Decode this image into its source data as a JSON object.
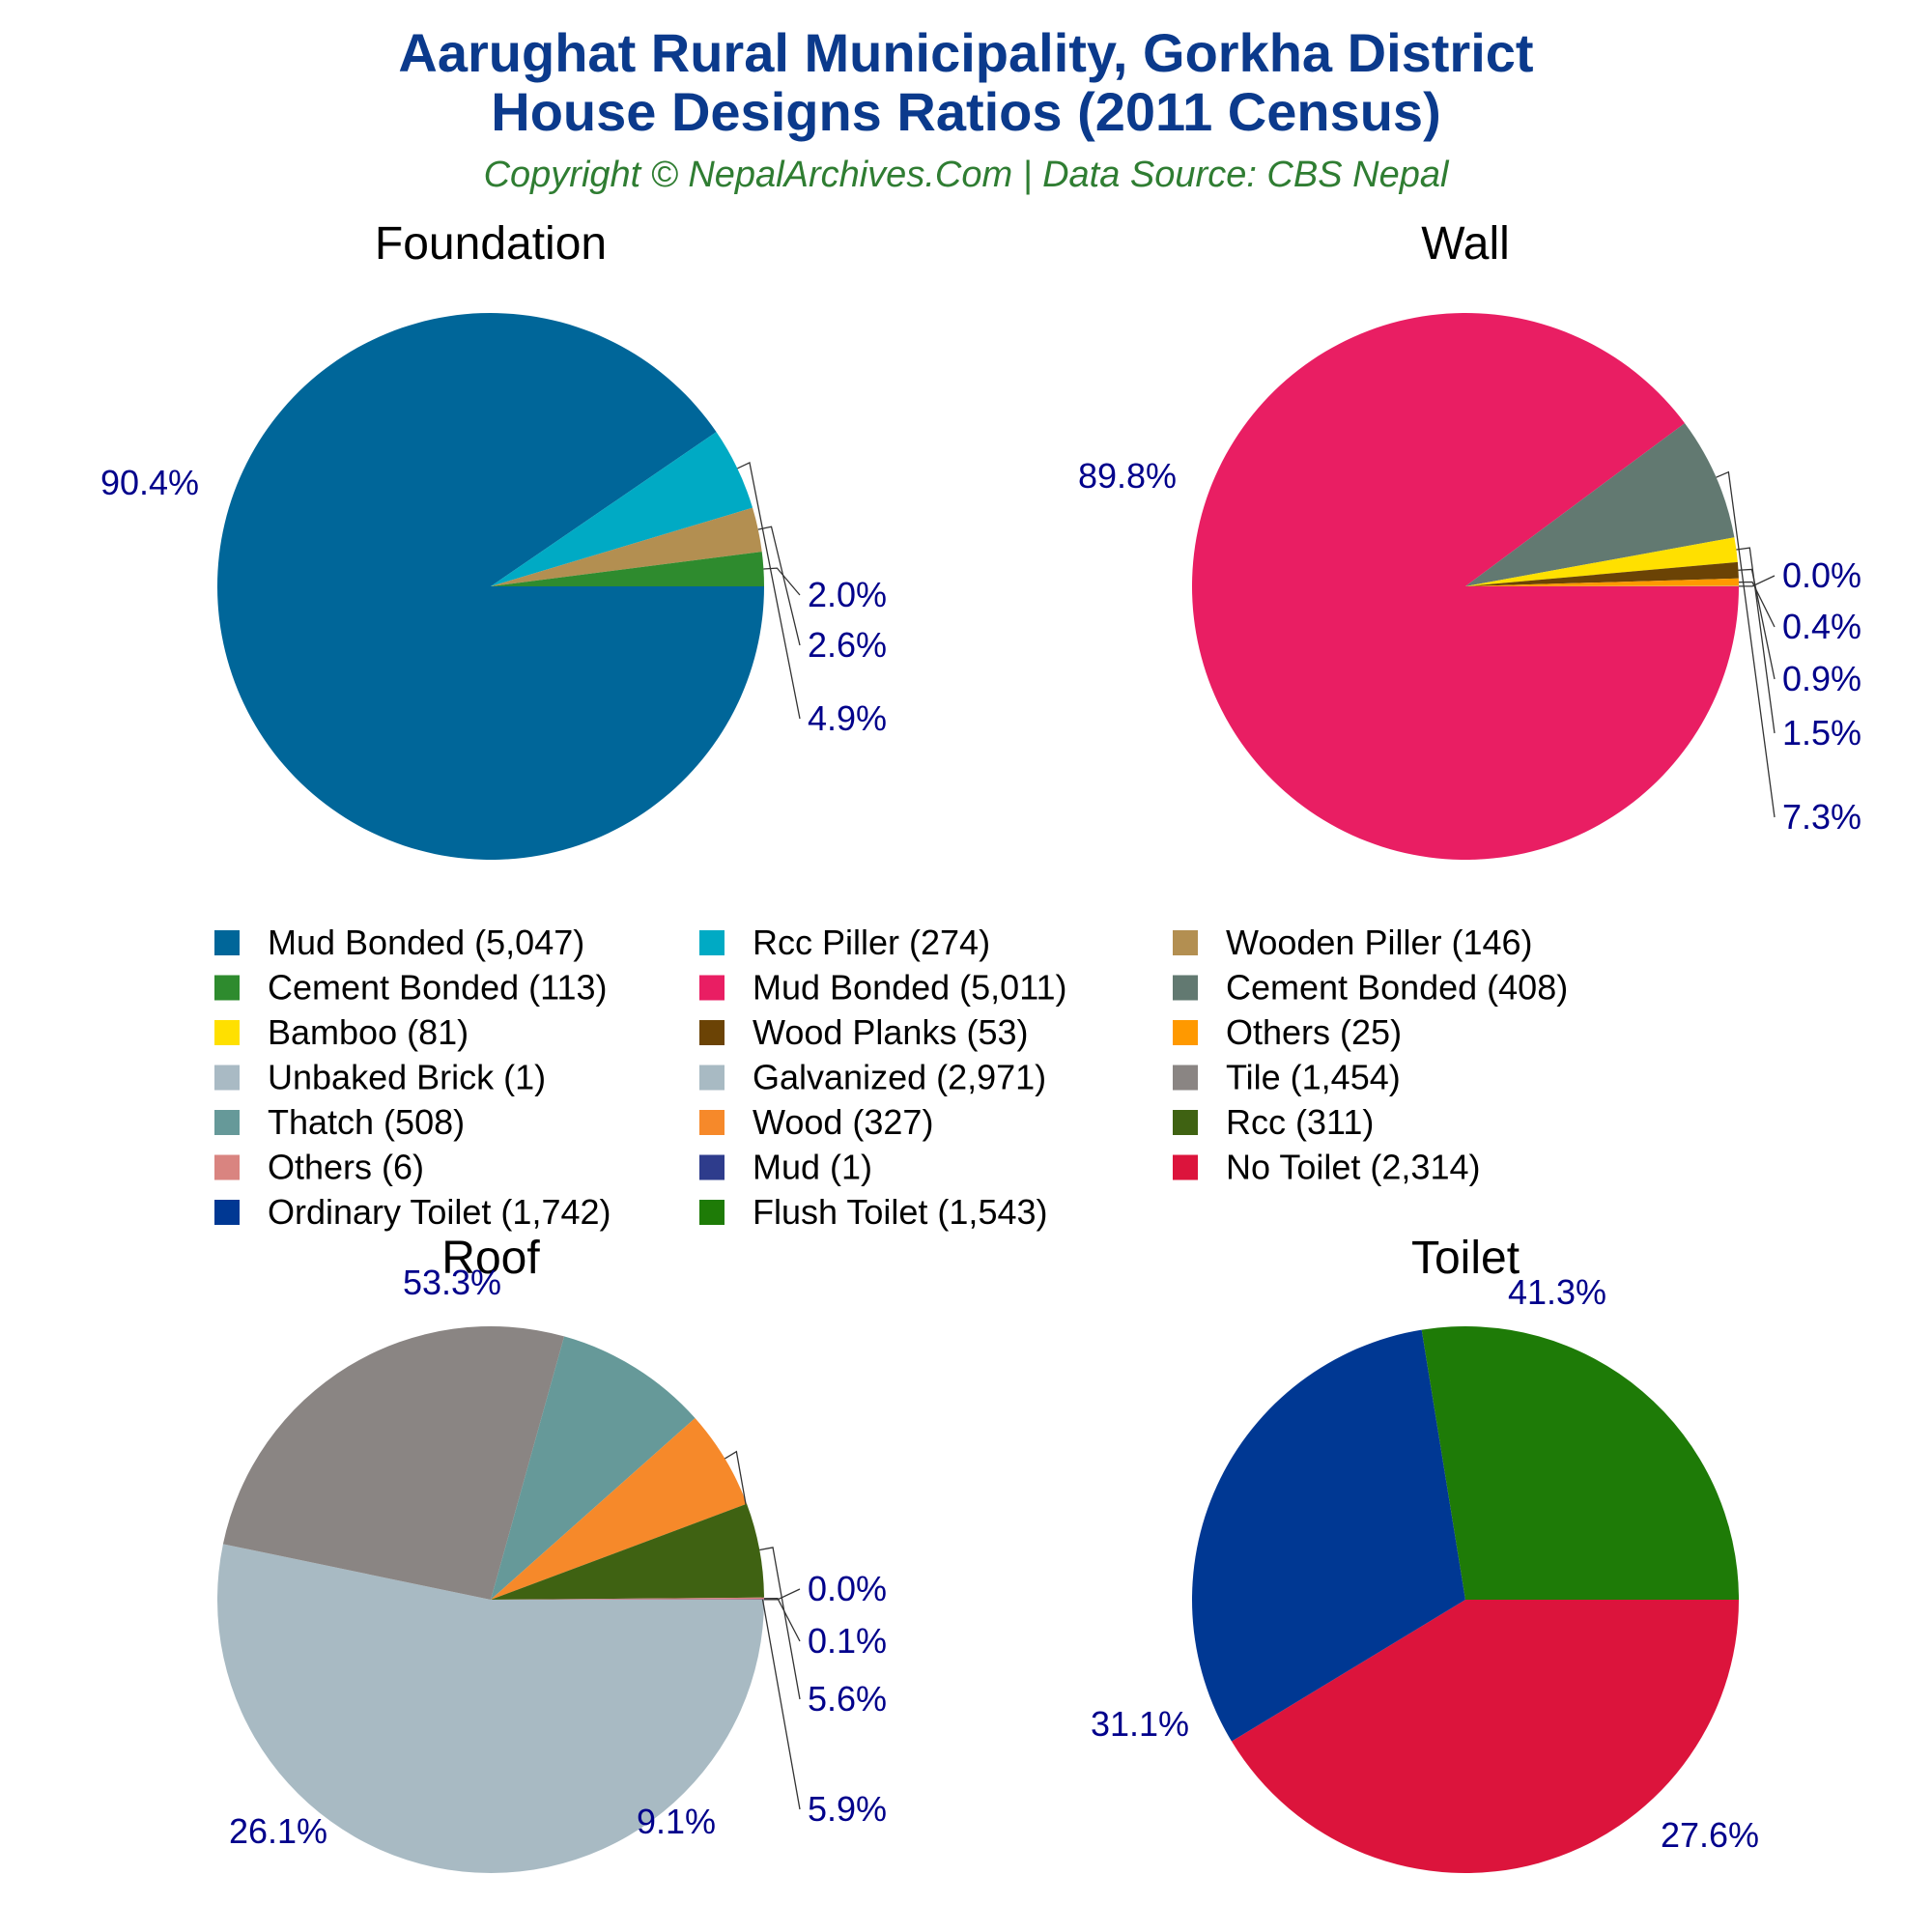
{
  "title_lines": [
    "Aarughat Rural Municipality, Gorkha District",
    "House Designs Ratios (2011 Census)"
  ],
  "subtitle": "Copyright © NepalArchives.Com | Data Source: CBS Nepal",
  "chart_data": [
    {
      "type": "pie",
      "title": "Foundation",
      "slices": [
        {
          "label": "Mud Bonded",
          "value": 5047,
          "pct_label": "90.4%",
          "color": "#006699"
        },
        {
          "label": "Rcc Piller",
          "value": 274,
          "pct_label": "4.9%",
          "color": "#00aac4"
        },
        {
          "label": "Wooden Piller",
          "value": 146,
          "pct_label": "2.6%",
          "color": "#b38f51"
        },
        {
          "label": "Cement Bonded",
          "value": 113,
          "pct_label": "2.0%",
          "color": "#2e8b2e"
        }
      ]
    },
    {
      "type": "pie",
      "title": "Wall",
      "slices": [
        {
          "label": "Mud Bonded",
          "value": 5011,
          "pct_label": "89.8%",
          "color": "#e91e63"
        },
        {
          "label": "Cement Bonded",
          "value": 408,
          "pct_label": "7.3%",
          "color": "#627971"
        },
        {
          "label": "Bamboo",
          "value": 81,
          "pct_label": "1.5%",
          "color": "#ffe000"
        },
        {
          "label": "Wood Planks",
          "value": 53,
          "pct_label": "0.9%",
          "color": "#6b4305"
        },
        {
          "label": "Others",
          "value": 25,
          "pct_label": "0.4%",
          "color": "#ff9900"
        },
        {
          "label": "Unbaked Brick",
          "value": 1,
          "pct_label": "0.0%",
          "color": "#a9bac4"
        }
      ]
    },
    {
      "type": "pie",
      "title": "Roof",
      "slices": [
        {
          "label": "Galvanized",
          "value": 2971,
          "pct_label": "53.3%",
          "color": "#a8bac3"
        },
        {
          "label": "Tile",
          "value": 1454,
          "pct_label": "26.1%",
          "color": "#8a8583"
        },
        {
          "label": "Thatch",
          "value": 508,
          "pct_label": "9.1%",
          "color": "#669999"
        },
        {
          "label": "Wood",
          "value": 327,
          "pct_label": "5.9%",
          "color": "#f6892a"
        },
        {
          "label": "Rcc",
          "value": 311,
          "pct_label": "5.6%",
          "color": "#3f6212"
        },
        {
          "label": "Others",
          "value": 6,
          "pct_label": "0.1%",
          "color": "#d98480"
        },
        {
          "label": "Mud",
          "value": 1,
          "pct_label": "0.0%",
          "color": "#2e3c8c"
        }
      ]
    },
    {
      "type": "pie",
      "title": "Toilet",
      "slices": [
        {
          "label": "No Toilet",
          "value": 2314,
          "pct_label": "41.3%",
          "color": "#dc143c"
        },
        {
          "label": "Ordinary Toilet",
          "value": 1742,
          "pct_label": "31.1%",
          "color": "#003893"
        },
        {
          "label": "Flush Toilet",
          "value": 1543,
          "pct_label": "27.6%",
          "color": "#1e7b07"
        }
      ]
    }
  ],
  "legend": [
    {
      "label": "Mud Bonded (5,047)",
      "color": "#006699"
    },
    {
      "label": "Rcc Piller (274)",
      "color": "#00aac4"
    },
    {
      "label": "Wooden Piller (146)",
      "color": "#b38f51"
    },
    {
      "label": "Cement Bonded (113)",
      "color": "#2e8b2e"
    },
    {
      "label": "Mud Bonded (5,011)",
      "color": "#e91e63"
    },
    {
      "label": "Cement Bonded (408)",
      "color": "#627971"
    },
    {
      "label": "Bamboo (81)",
      "color": "#ffe000"
    },
    {
      "label": "Wood Planks (53)",
      "color": "#6b4305"
    },
    {
      "label": "Others (25)",
      "color": "#ff9900"
    },
    {
      "label": "Unbaked Brick (1)",
      "color": "#a9bac4"
    },
    {
      "label": "Galvanized (2,971)",
      "color": "#a8bac3"
    },
    {
      "label": "Tile (1,454)",
      "color": "#8a8583"
    },
    {
      "label": "Thatch (508)",
      "color": "#669999"
    },
    {
      "label": "Wood (327)",
      "color": "#f6892a"
    },
    {
      "label": "Rcc (311)",
      "color": "#3f6212"
    },
    {
      "label": "Others (6)",
      "color": "#d98480"
    },
    {
      "label": "Mud (1)",
      "color": "#2e3c8c"
    },
    {
      "label": "No Toilet (2,314)",
      "color": "#dc143c"
    },
    {
      "label": "Ordinary Toilet (1,742)",
      "color": "#003893"
    },
    {
      "label": "Flush Toilet (1,543)",
      "color": "#1e7b07"
    }
  ]
}
